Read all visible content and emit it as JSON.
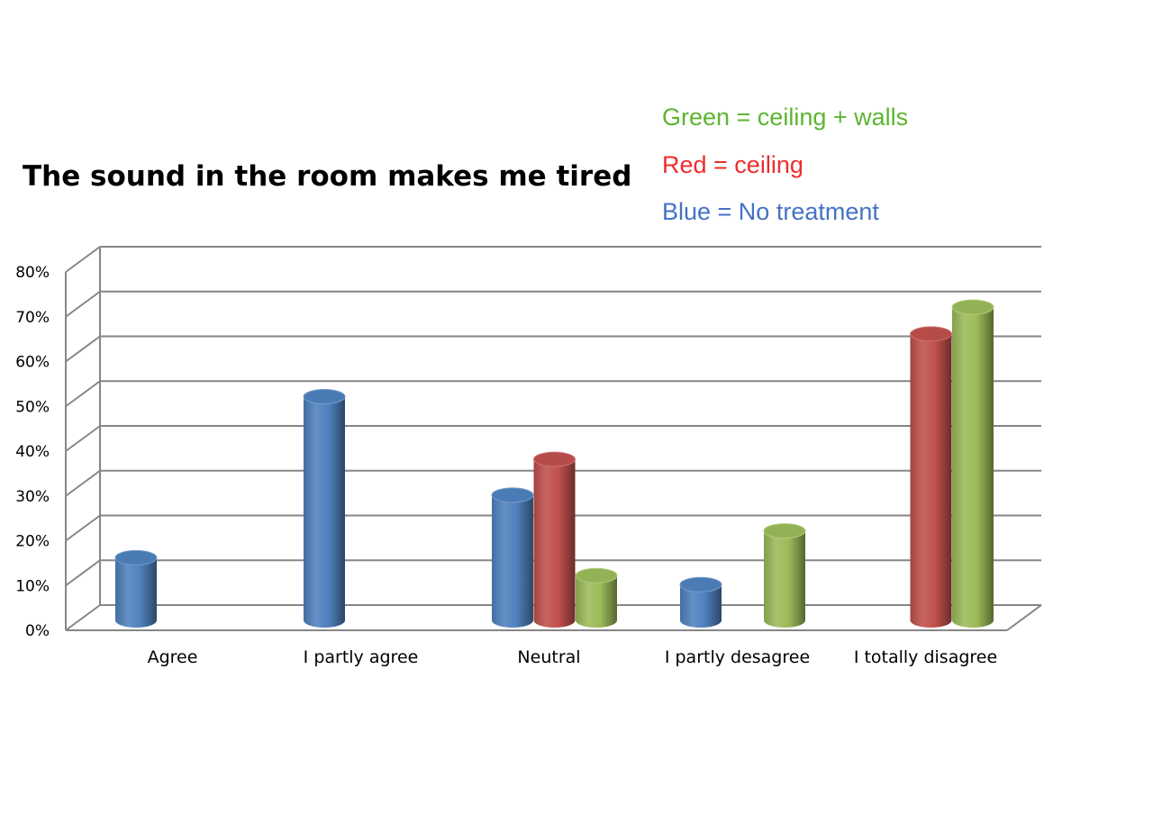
{
  "legend": {
    "green": "Green = ceiling + walls",
    "red": "Red = ceiling",
    "blue": "Blue = No treatment"
  },
  "colors": {
    "blue": "#4f81bd",
    "red": "#c0504d",
    "green": "#9bbb59",
    "blue_text": "#4472c4",
    "red_text": "#ee2c2c",
    "green_text": "#5cb531",
    "grid": "#868686"
  },
  "chart_data": {
    "type": "bar",
    "title": "The sound in the room makes me tired",
    "categories": [
      "Agree",
      "I partly agree",
      "Neutral",
      "I partly desagree",
      "I totally disagree"
    ],
    "series": [
      {
        "name": "Blue = No treatment",
        "color": "blue",
        "values": [
          14,
          50,
          28,
          8,
          0
        ]
      },
      {
        "name": "Red = ceiling",
        "color": "red",
        "values": [
          0,
          0,
          36,
          0,
          64
        ]
      },
      {
        "name": "Green = ceiling + walls",
        "color": "green",
        "values": [
          0,
          0,
          10,
          20,
          70
        ]
      }
    ],
    "yticks": [
      "0%",
      "10%",
      "20%",
      "30%",
      "40%",
      "50%",
      "60%",
      "70%",
      "80%"
    ],
    "ylim": [
      0,
      80
    ],
    "grid": true,
    "xlabel": "",
    "ylabel": ""
  }
}
